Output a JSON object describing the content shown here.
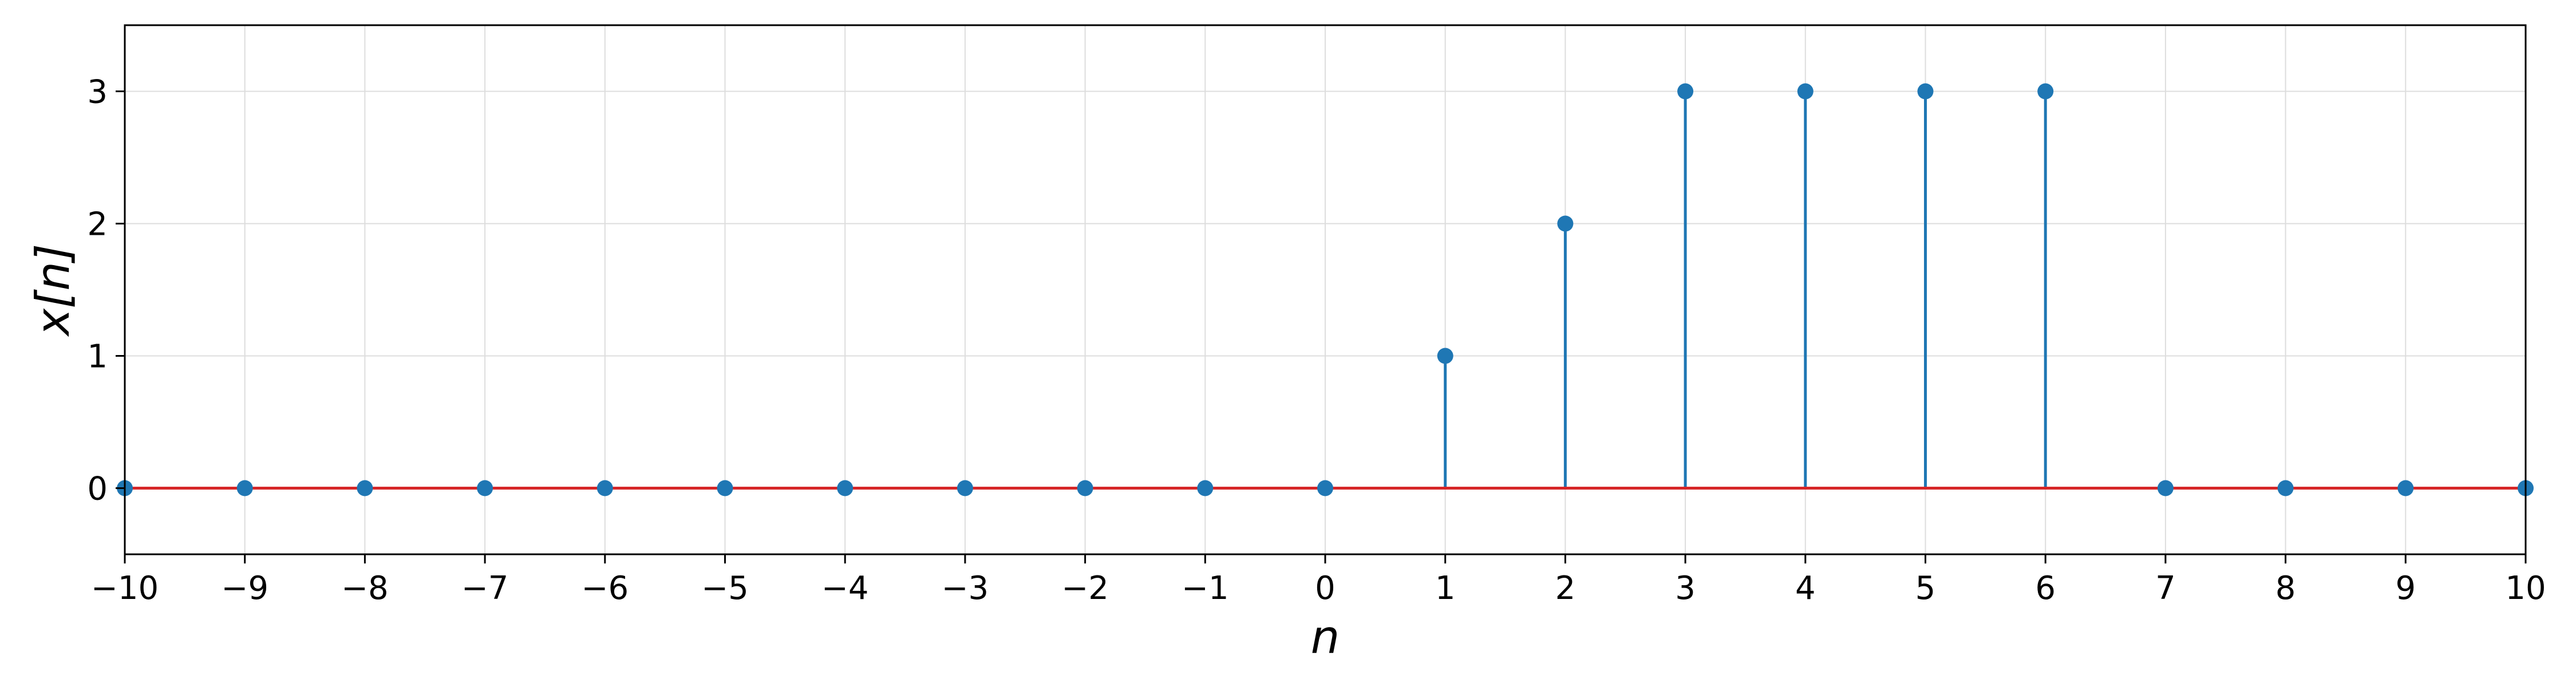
{
  "chart_data": {
    "type": "stem",
    "x": [
      -10,
      -9,
      -8,
      -7,
      -6,
      -5,
      -4,
      -3,
      -2,
      -1,
      0,
      1,
      2,
      3,
      4,
      5,
      6,
      7,
      8,
      9,
      10
    ],
    "y": [
      0,
      0,
      0,
      0,
      0,
      0,
      0,
      0,
      0,
      0,
      0,
      1,
      2,
      3,
      3,
      3,
      3,
      0,
      0,
      0,
      0
    ],
    "xlabel": "n",
    "ylabel": "x[n]",
    "xlim": [
      -10,
      10
    ],
    "ylim": [
      -0.5,
      3.5
    ],
    "xticks": [
      -10,
      -9,
      -8,
      -7,
      -6,
      -5,
      -4,
      -3,
      -2,
      -1,
      0,
      1,
      2,
      3,
      4,
      5,
      6,
      7,
      8,
      9,
      10
    ],
    "xtick_labels": [
      "−10",
      "−9",
      "−8",
      "−7",
      "−6",
      "−5",
      "−4",
      "−3",
      "−2",
      "−1",
      "0",
      "1",
      "2",
      "3",
      "4",
      "5",
      "6",
      "7",
      "8",
      "9",
      "10"
    ],
    "yticks": [
      0,
      1,
      2,
      3
    ],
    "ytick_labels": [
      "0",
      "1",
      "2",
      "3"
    ],
    "grid": true,
    "colors": {
      "stem": "#1f77b4",
      "baseline": "#d62728",
      "grid": "#dddddd",
      "axes": "#000000"
    }
  }
}
